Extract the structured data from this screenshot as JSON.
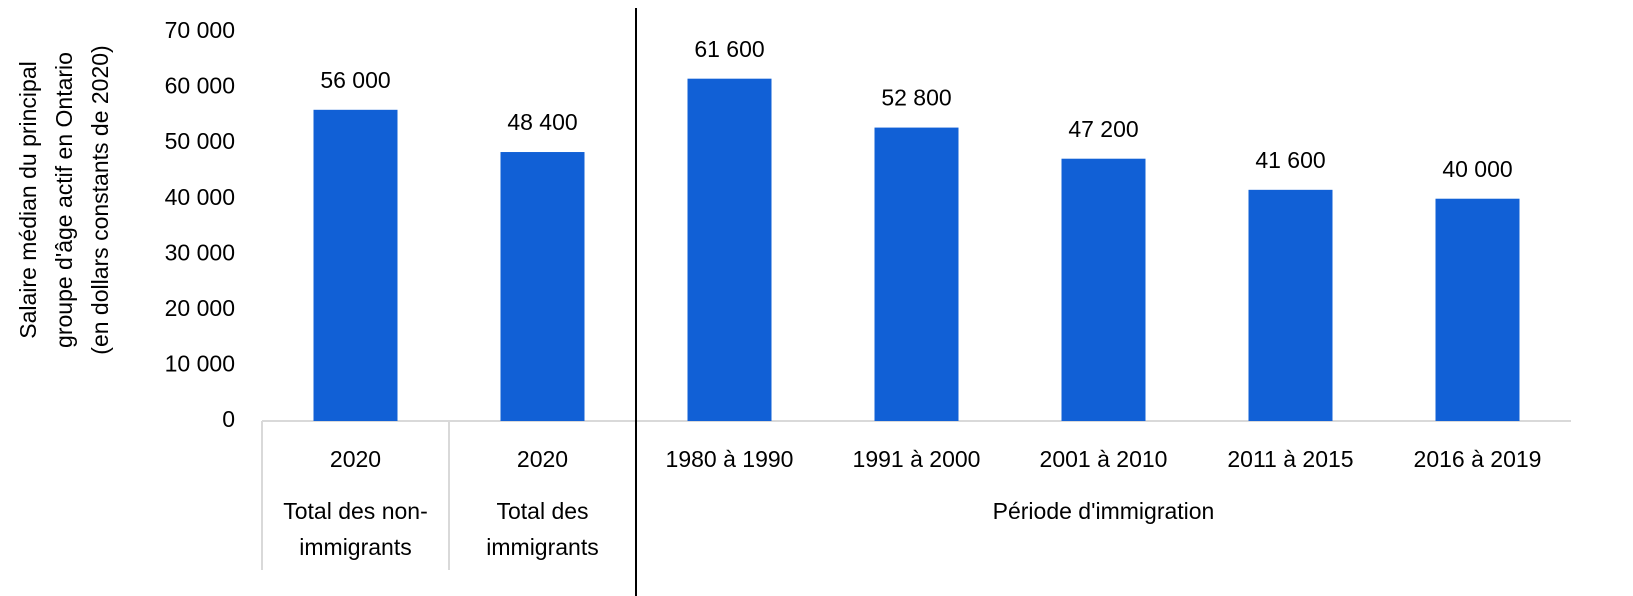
{
  "chart_data": {
    "type": "bar",
    "y_label": [
      "Salaire médian du principal",
      "groupe d'âge actif en Ontario",
      "(en dollars constants de 2020)"
    ],
    "categories": [
      "2020",
      "2020",
      "1980 à 1990",
      "1991 à 2000",
      "2001 à 2010",
      "2011 à 2015",
      "2016 à 2019"
    ],
    "groups": [
      {
        "label": [
          "Total des non-",
          "immigrants"
        ],
        "count": 1
      },
      {
        "label": [
          "Total des",
          "immigrants"
        ],
        "count": 1
      },
      {
        "label": [
          "Période d'immigration"
        ],
        "count": 5
      }
    ],
    "values": [
      56000,
      48400,
      61600,
      52800,
      47200,
      41600,
      40000
    ],
    "value_labels": [
      "56 000",
      "48 400",
      "61 600",
      "52 800",
      "47 200",
      "41 600",
      "40 000"
    ],
    "color": "#1160d6",
    "ylim": [
      0,
      70000
    ],
    "yticks": [
      0,
      {
        "value": 10000,
        "label": "10 000"
      },
      {
        "value": 20000,
        "label": "20 000"
      },
      {
        "value": 30000,
        "label": "30 000"
      },
      {
        "value": 40000,
        "label": "40 000"
      },
      {
        "value": 50000,
        "label": "50 000"
      },
      {
        "value": 60000,
        "label": "60 000"
      },
      {
        "value": 70000,
        "label": "70 000"
      }
    ],
    "grid": false
  }
}
